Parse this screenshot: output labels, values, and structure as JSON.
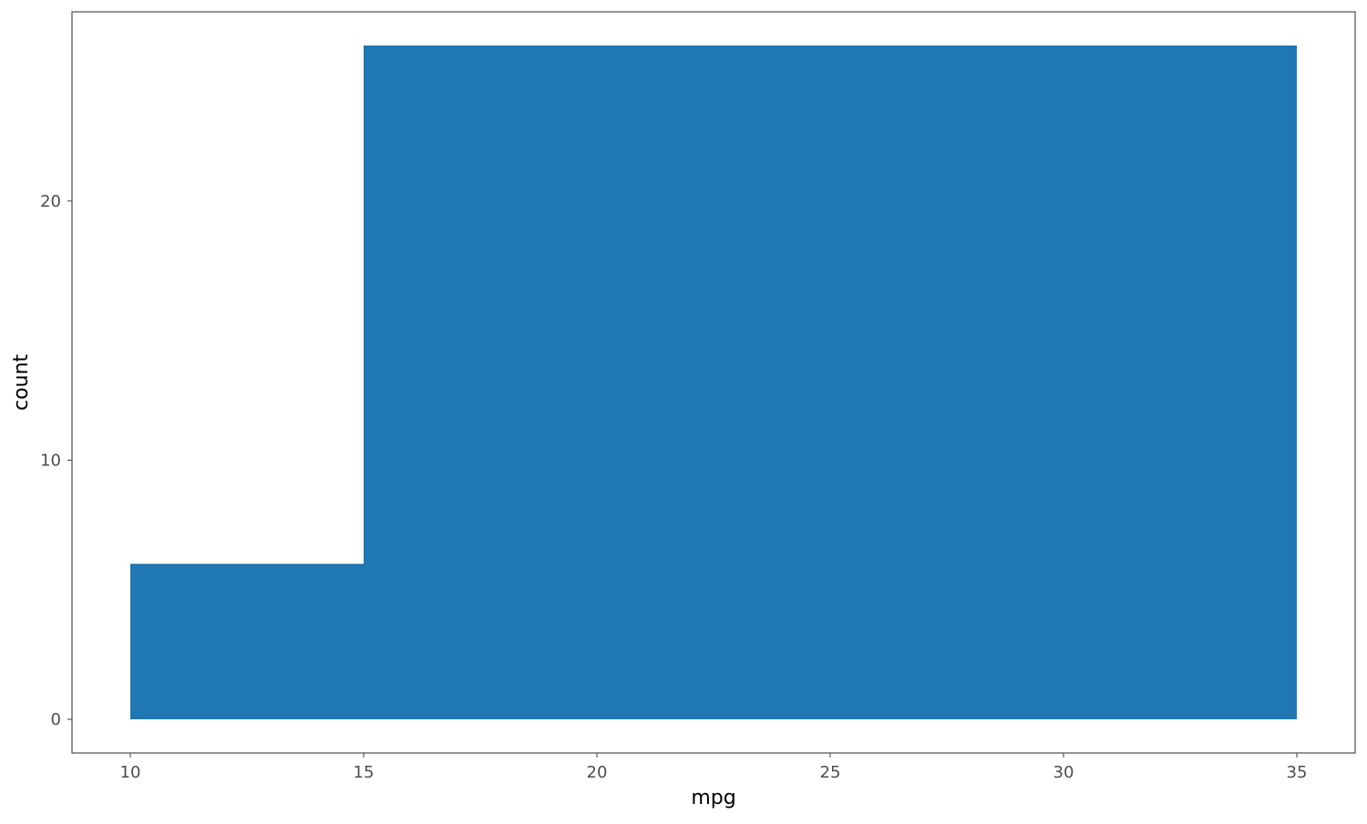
{
  "chart_data": {
    "type": "bar",
    "title": "",
    "xlabel": "mpg",
    "ylabel": "count",
    "x_ticks": [
      "10",
      "15",
      "20",
      "25",
      "30",
      "35"
    ],
    "y_ticks": [
      "0",
      "10",
      "20"
    ],
    "xlim": [
      8.75,
      36.25
    ],
    "ylim": [
      -1.3,
      27.3
    ],
    "grid": false,
    "legend": "none",
    "bar_color": "#1f77b4",
    "frame_color": "#4d4d4d",
    "bins": [
      {
        "x0": 10,
        "x1": 15,
        "value": 6
      },
      {
        "x0": 15,
        "x1": 35,
        "value": 26
      }
    ]
  }
}
